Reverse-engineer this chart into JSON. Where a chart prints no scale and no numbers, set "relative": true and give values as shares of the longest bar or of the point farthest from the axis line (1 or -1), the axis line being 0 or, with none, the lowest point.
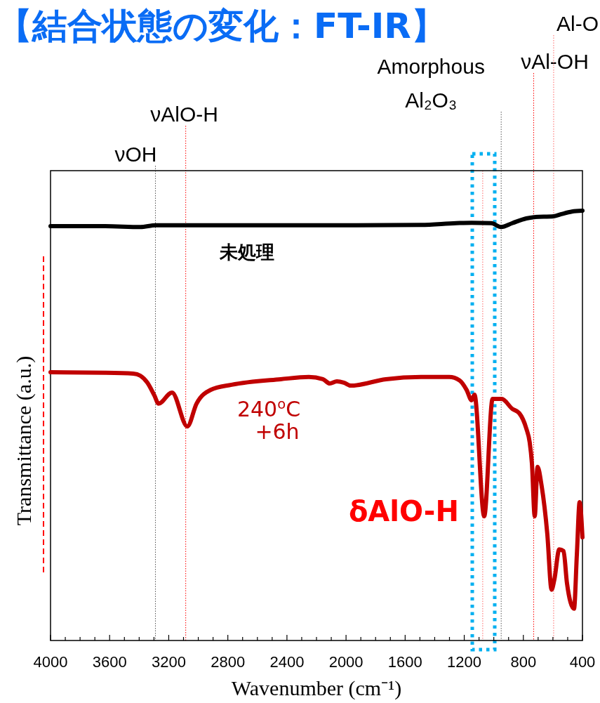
{
  "chart_data": {
    "type": "line",
    "title": "【結合状態の変化：FT-IR】",
    "xlabel": "Wavenumber (cm⁻¹)",
    "ylabel": "Transmittance (a.u.)",
    "relative": true,
    "xlim": [
      4000,
      400
    ],
    "xticks": [
      4000,
      {
        "value": 3900,
        "label": null
      },
      {
        "value": 3800,
        "label": null
      },
      {
        "value": 3700,
        "label": null
      },
      3600,
      {
        "value": 3500,
        "label": null
      },
      {
        "value": 3400,
        "label": null
      },
      {
        "value": 3300,
        "label": null
      },
      3200,
      {
        "value": 3100,
        "label": null
      },
      {
        "value": 3000,
        "label": null
      },
      {
        "value": 2900,
        "label": null
      },
      2800,
      {
        "value": 2700,
        "label": null
      },
      {
        "value": 2600,
        "label": null
      },
      {
        "value": 2500,
        "label": null
      },
      2400,
      {
        "value": 2300,
        "label": null
      },
      {
        "value": 2200,
        "label": null
      },
      {
        "value": 2100,
        "label": null
      },
      2000,
      {
        "value": 1900,
        "label": null
      },
      {
        "value": 1800,
        "label": null
      },
      {
        "value": 1700,
        "label": null
      },
      1600,
      {
        "value": 1500,
        "label": null
      },
      {
        "value": 1400,
        "label": null
      },
      {
        "value": 1300,
        "label": null
      },
      1200,
      {
        "value": 1100,
        "label": null
      },
      {
        "value": 1000,
        "label": null
      },
      {
        "value": 900,
        "label": null
      },
      800,
      {
        "value": 700,
        "label": null
      },
      {
        "value": 600,
        "label": null
      },
      {
        "value": 500,
        "label": null
      },
      400
    ],
    "grid": false,
    "marker": "none",
    "line_style": "solid",
    "series": [
      {
        "name": "未処理",
        "color": "#000000",
        "x": [
          4000,
          3630,
          3392,
          3288,
          2917,
          1967,
          1492,
          1255,
          1150,
          1017,
          951,
          875,
          780,
          728,
          595,
          543,
          471,
          400
        ],
        "values": [
          0.964,
          0.964,
          0.962,
          0.966,
          0.966,
          0.966,
          0.967,
          0.971,
          0.972,
          0.971,
          0.962,
          0.971,
          0.982,
          0.985,
          0.987,
          0.992,
          0.998,
          1
        ]
      },
      {
        "name": "240$^{o}$C +6h",
        "color": "#c00000",
        "x": [
          4000,
          3630,
          3440,
          3392,
          3345,
          3297,
          3269,
          3178,
          3074,
          3012,
          2917,
          2775,
          2442,
          2252,
          2157,
          2110,
          2062,
          2015,
          1967,
          1730,
          1492,
          1302,
          1231,
          1184,
          1150,
          1131,
          1065,
          1008,
          946,
          875,
          828,
          780,
          757,
          742,
          723,
          704,
          676,
          638,
          609,
          590,
          557,
          528,
          505,
          457,
          438,
          419,
          400
        ],
        "values": [
          0.624,
          0.623,
          0.621,
          0.616,
          0.6,
          0.57,
          0.551,
          0.577,
          0.498,
          0.551,
          0.583,
          0.595,
          0.608,
          0.613,
          0.608,
          0.598,
          0.603,
          0.6,
          0.593,
          0.608,
          0.613,
          0.613,
          0.605,
          0.583,
          0.559,
          0.572,
          0.289,
          0.562,
          0.562,
          0.539,
          0.529,
          0.493,
          0.461,
          0.412,
          0.289,
          0.404,
          0.359,
          0.248,
          0.118,
          0.142,
          0.212,
          0.208,
          0.134,
          0.074,
          0.199,
          0.322,
          0.24
        ]
      }
    ],
    "ref_lines": [
      {
        "axis": "x",
        "value": 3290,
        "label": "νOH",
        "color": "#555555",
        "line_style": "dotted"
      },
      {
        "axis": "x",
        "value": 3085,
        "label": "νAlO-H",
        "color": "#ff0000",
        "line_style": "dotted"
      },
      {
        "axis": "x",
        "value": 1075,
        "color": "#ff6666",
        "line_style": "dotted"
      },
      {
        "axis": "x",
        "value": 950,
        "label": "Amorphous Al₂O₃",
        "color": "#555555",
        "line_style": "dotted"
      },
      {
        "axis": "x",
        "value": 730,
        "label": "νAl-OH",
        "color": "#ff0000",
        "line_style": "dotted"
      },
      {
        "axis": "x",
        "value": 595,
        "label": "Al-O",
        "color": "#ff6666",
        "line_style": "dotted"
      }
    ],
    "annotations": [
      {
        "text": "δAlO-H",
        "x": 1075,
        "y": 0.3
      }
    ]
  }
}
